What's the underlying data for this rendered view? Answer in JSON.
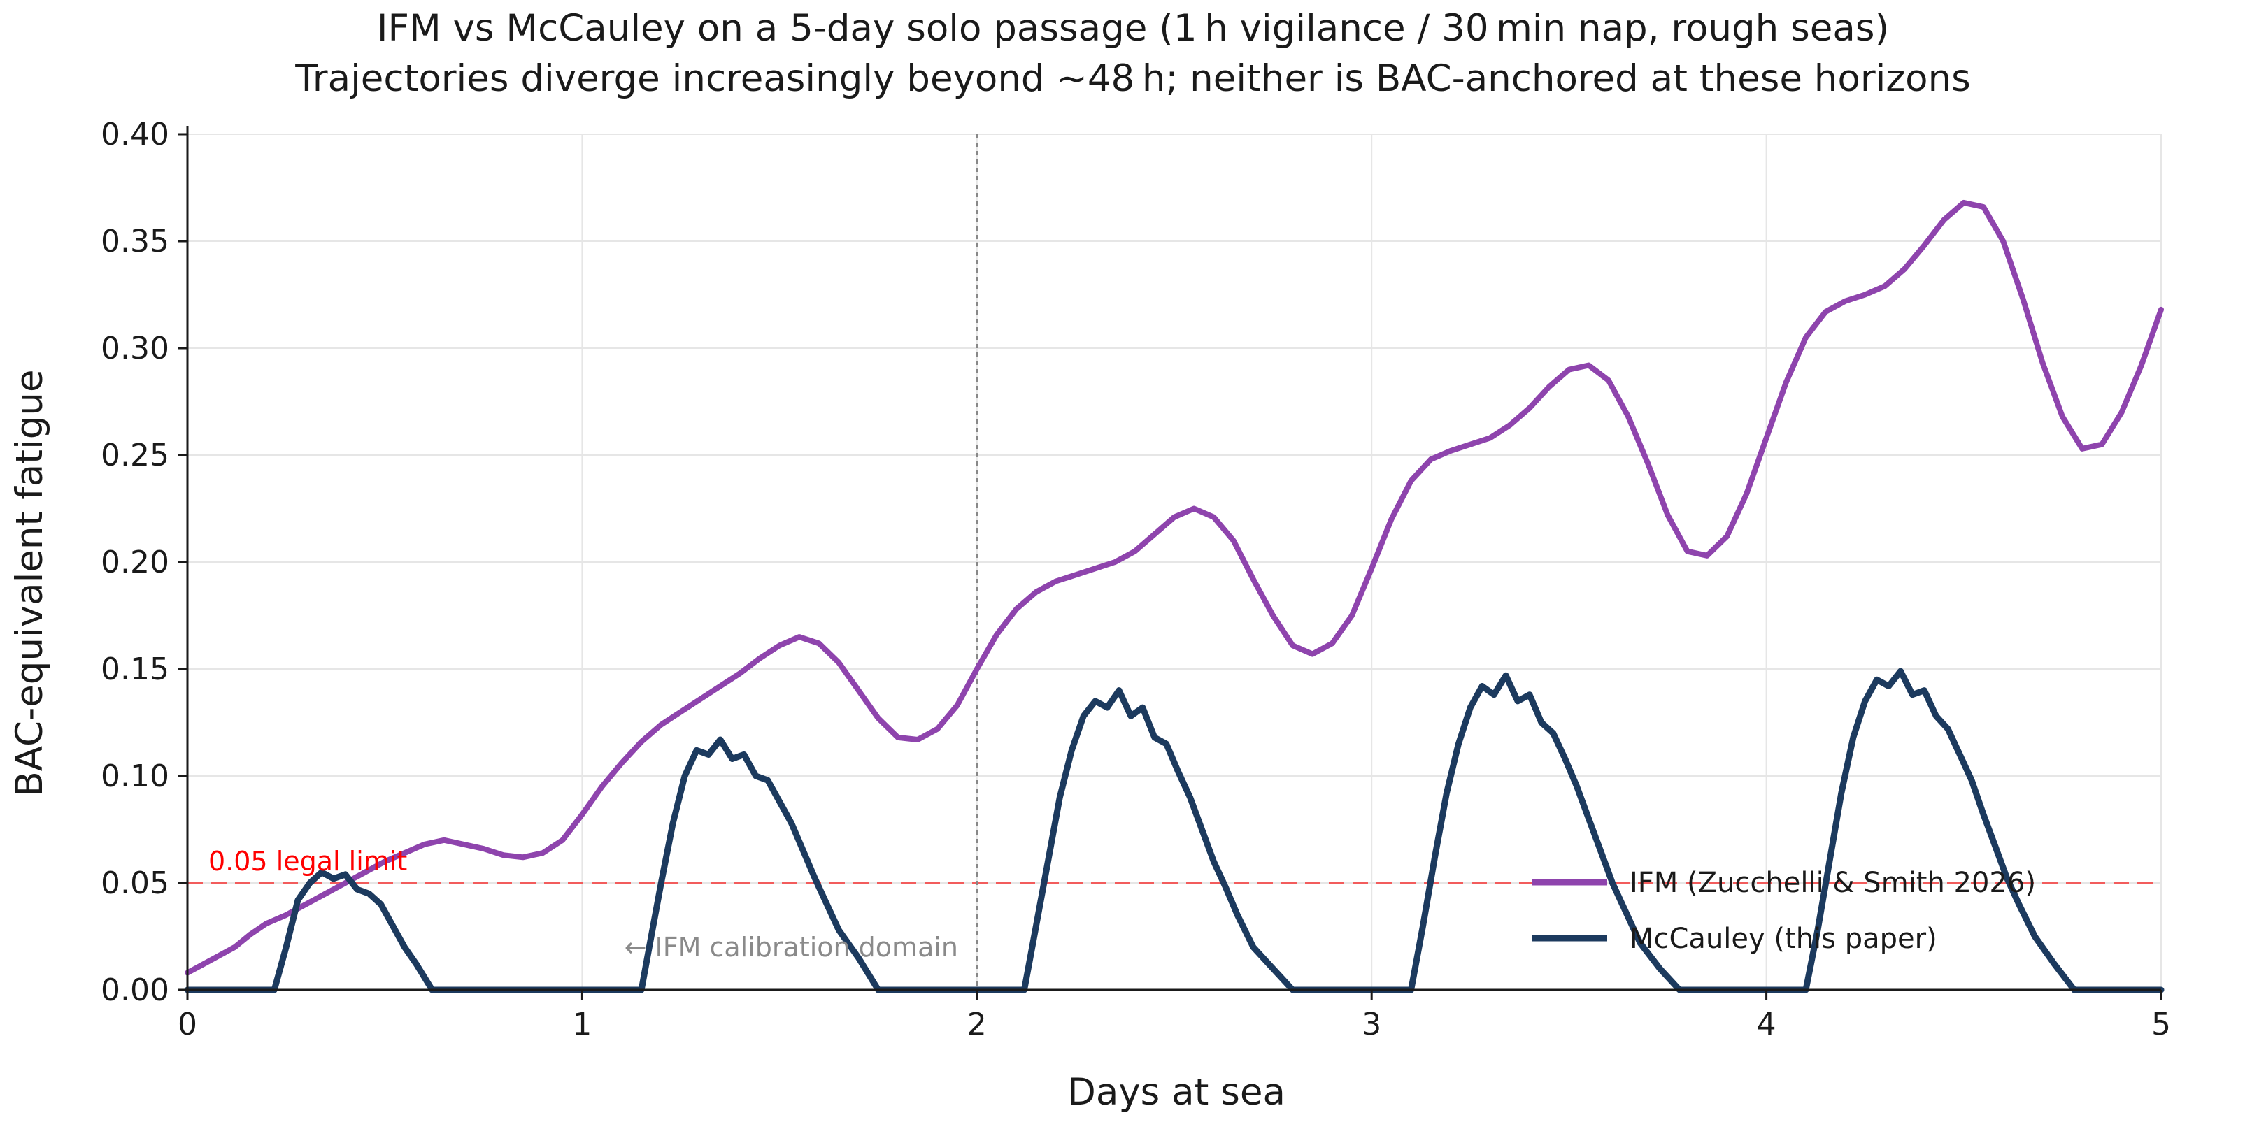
{
  "chart_data": {
    "type": "line",
    "title": "IFM vs McCauley on a 5-day solo passage (1 h vigilance / 30 min nap, rough seas)",
    "subtitle": "Trajectories diverge increasingly beyond ~48 h; neither is BAC-anchored at these horizons",
    "xlabel": "Days at sea",
    "ylabel": "BAC-equivalent fatigue",
    "xlim": [
      0,
      5
    ],
    "ylim": [
      0,
      0.4
    ],
    "x_ticks": [
      0,
      1,
      2,
      3,
      4,
      5
    ],
    "y_ticks": [
      0.0,
      0.05,
      0.1,
      0.15,
      0.2,
      0.25,
      0.3,
      0.35,
      0.4
    ],
    "grid": true,
    "legend_position": "lower-right",
    "reference_line": {
      "y": 0.05,
      "label": "0.05 legal limit",
      "color": "#f25c5c"
    },
    "vertical_marker": {
      "x": 2,
      "color": "#888888"
    },
    "annotation": {
      "text": "← IFM calibration domain",
      "x": 1.94,
      "y": 0.0195
    },
    "series": [
      {
        "name": "IFM (Zucchelli & Smith 2026)",
        "color": "#8e44ad",
        "points": [
          [
            0.0,
            0.008
          ],
          [
            0.04,
            0.012
          ],
          [
            0.08,
            0.016
          ],
          [
            0.12,
            0.02
          ],
          [
            0.16,
            0.026
          ],
          [
            0.2,
            0.031
          ],
          [
            0.25,
            0.035
          ],
          [
            0.3,
            0.04
          ],
          [
            0.35,
            0.045
          ],
          [
            0.4,
            0.05
          ],
          [
            0.45,
            0.055
          ],
          [
            0.5,
            0.06
          ],
          [
            0.55,
            0.064
          ],
          [
            0.6,
            0.068
          ],
          [
            0.65,
            0.07
          ],
          [
            0.7,
            0.068
          ],
          [
            0.75,
            0.066
          ],
          [
            0.8,
            0.063
          ],
          [
            0.85,
            0.062
          ],
          [
            0.9,
            0.064
          ],
          [
            0.95,
            0.07
          ],
          [
            1.0,
            0.082
          ],
          [
            1.05,
            0.095
          ],
          [
            1.1,
            0.106
          ],
          [
            1.15,
            0.116
          ],
          [
            1.2,
            0.124
          ],
          [
            1.25,
            0.13
          ],
          [
            1.3,
            0.136
          ],
          [
            1.35,
            0.142
          ],
          [
            1.4,
            0.148
          ],
          [
            1.45,
            0.155
          ],
          [
            1.5,
            0.161
          ],
          [
            1.55,
            0.165
          ],
          [
            1.6,
            0.162
          ],
          [
            1.65,
            0.153
          ],
          [
            1.7,
            0.14
          ],
          [
            1.75,
            0.127
          ],
          [
            1.8,
            0.118
          ],
          [
            1.85,
            0.117
          ],
          [
            1.9,
            0.122
          ],
          [
            1.95,
            0.133
          ],
          [
            2.0,
            0.15
          ],
          [
            2.05,
            0.166
          ],
          [
            2.1,
            0.178
          ],
          [
            2.15,
            0.186
          ],
          [
            2.2,
            0.191
          ],
          [
            2.25,
            0.194
          ],
          [
            2.3,
            0.197
          ],
          [
            2.35,
            0.2
          ],
          [
            2.4,
            0.205
          ],
          [
            2.45,
            0.213
          ],
          [
            2.5,
            0.221
          ],
          [
            2.55,
            0.225
          ],
          [
            2.6,
            0.221
          ],
          [
            2.65,
            0.21
          ],
          [
            2.7,
            0.192
          ],
          [
            2.75,
            0.175
          ],
          [
            2.8,
            0.161
          ],
          [
            2.85,
            0.157
          ],
          [
            2.9,
            0.162
          ],
          [
            2.95,
            0.175
          ],
          [
            3.0,
            0.197
          ],
          [
            3.05,
            0.22
          ],
          [
            3.1,
            0.238
          ],
          [
            3.15,
            0.248
          ],
          [
            3.2,
            0.252
          ],
          [
            3.25,
            0.255
          ],
          [
            3.3,
            0.258
          ],
          [
            3.35,
            0.264
          ],
          [
            3.4,
            0.272
          ],
          [
            3.45,
            0.282
          ],
          [
            3.5,
            0.29
          ],
          [
            3.55,
            0.292
          ],
          [
            3.6,
            0.285
          ],
          [
            3.65,
            0.268
          ],
          [
            3.7,
            0.246
          ],
          [
            3.75,
            0.222
          ],
          [
            3.8,
            0.205
          ],
          [
            3.85,
            0.203
          ],
          [
            3.9,
            0.212
          ],
          [
            3.95,
            0.232
          ],
          [
            4.0,
            0.258
          ],
          [
            4.05,
            0.284
          ],
          [
            4.1,
            0.305
          ],
          [
            4.15,
            0.317
          ],
          [
            4.2,
            0.322
          ],
          [
            4.25,
            0.325
          ],
          [
            4.3,
            0.329
          ],
          [
            4.35,
            0.337
          ],
          [
            4.4,
            0.348
          ],
          [
            4.45,
            0.36
          ],
          [
            4.5,
            0.368
          ],
          [
            4.55,
            0.366
          ],
          [
            4.6,
            0.35
          ],
          [
            4.65,
            0.323
          ],
          [
            4.7,
            0.293
          ],
          [
            4.75,
            0.268
          ],
          [
            4.8,
            0.253
          ],
          [
            4.85,
            0.255
          ],
          [
            4.9,
            0.27
          ],
          [
            4.95,
            0.292
          ],
          [
            5.0,
            0.318
          ]
        ]
      },
      {
        "name": "McCauley (this paper)",
        "color": "#1c3a5e",
        "points": [
          [
            0.0,
            0.0
          ],
          [
            0.22,
            0.0
          ],
          [
            0.25,
            0.02
          ],
          [
            0.28,
            0.042
          ],
          [
            0.31,
            0.05
          ],
          [
            0.34,
            0.055
          ],
          [
            0.37,
            0.052
          ],
          [
            0.4,
            0.054
          ],
          [
            0.43,
            0.047
          ],
          [
            0.46,
            0.045
          ],
          [
            0.49,
            0.04
          ],
          [
            0.52,
            0.03
          ],
          [
            0.55,
            0.02
          ],
          [
            0.58,
            0.012
          ],
          [
            0.62,
            0.0
          ],
          [
            1.15,
            0.0
          ],
          [
            1.17,
            0.02
          ],
          [
            1.2,
            0.05
          ],
          [
            1.23,
            0.078
          ],
          [
            1.26,
            0.1
          ],
          [
            1.29,
            0.112
          ],
          [
            1.32,
            0.11
          ],
          [
            1.35,
            0.117
          ],
          [
            1.38,
            0.108
          ],
          [
            1.41,
            0.11
          ],
          [
            1.44,
            0.1
          ],
          [
            1.47,
            0.098
          ],
          [
            1.5,
            0.088
          ],
          [
            1.53,
            0.078
          ],
          [
            1.56,
            0.065
          ],
          [
            1.59,
            0.052
          ],
          [
            1.62,
            0.04
          ],
          [
            1.65,
            0.028
          ],
          [
            1.7,
            0.015
          ],
          [
            1.75,
            0.0
          ],
          [
            2.12,
            0.0
          ],
          [
            2.15,
            0.03
          ],
          [
            2.18,
            0.06
          ],
          [
            2.21,
            0.09
          ],
          [
            2.24,
            0.112
          ],
          [
            2.27,
            0.128
          ],
          [
            2.3,
            0.135
          ],
          [
            2.33,
            0.132
          ],
          [
            2.36,
            0.14
          ],
          [
            2.39,
            0.128
          ],
          [
            2.42,
            0.132
          ],
          [
            2.45,
            0.118
          ],
          [
            2.48,
            0.115
          ],
          [
            2.51,
            0.102
          ],
          [
            2.54,
            0.09
          ],
          [
            2.57,
            0.075
          ],
          [
            2.6,
            0.06
          ],
          [
            2.63,
            0.048
          ],
          [
            2.66,
            0.035
          ],
          [
            2.7,
            0.02
          ],
          [
            2.75,
            0.01
          ],
          [
            2.8,
            0.0
          ],
          [
            3.1,
            0.0
          ],
          [
            3.13,
            0.03
          ],
          [
            3.16,
            0.062
          ],
          [
            3.19,
            0.092
          ],
          [
            3.22,
            0.115
          ],
          [
            3.25,
            0.132
          ],
          [
            3.28,
            0.142
          ],
          [
            3.31,
            0.138
          ],
          [
            3.34,
            0.147
          ],
          [
            3.37,
            0.135
          ],
          [
            3.4,
            0.138
          ],
          [
            3.43,
            0.125
          ],
          [
            3.46,
            0.12
          ],
          [
            3.49,
            0.108
          ],
          [
            3.52,
            0.095
          ],
          [
            3.55,
            0.08
          ],
          [
            3.58,
            0.065
          ],
          [
            3.61,
            0.05
          ],
          [
            3.64,
            0.038
          ],
          [
            3.68,
            0.022
          ],
          [
            3.73,
            0.01
          ],
          [
            3.78,
            0.0
          ],
          [
            4.1,
            0.0
          ],
          [
            4.13,
            0.028
          ],
          [
            4.16,
            0.06
          ],
          [
            4.19,
            0.092
          ],
          [
            4.22,
            0.118
          ],
          [
            4.25,
            0.135
          ],
          [
            4.28,
            0.145
          ],
          [
            4.31,
            0.142
          ],
          [
            4.34,
            0.149
          ],
          [
            4.37,
            0.138
          ],
          [
            4.4,
            0.14
          ],
          [
            4.43,
            0.128
          ],
          [
            4.46,
            0.122
          ],
          [
            4.49,
            0.11
          ],
          [
            4.52,
            0.098
          ],
          [
            4.55,
            0.082
          ],
          [
            4.58,
            0.067
          ],
          [
            4.61,
            0.052
          ],
          [
            4.64,
            0.04
          ],
          [
            4.68,
            0.025
          ],
          [
            4.73,
            0.012
          ],
          [
            4.78,
            0.0
          ],
          [
            5.0,
            0.0
          ]
        ]
      }
    ]
  }
}
